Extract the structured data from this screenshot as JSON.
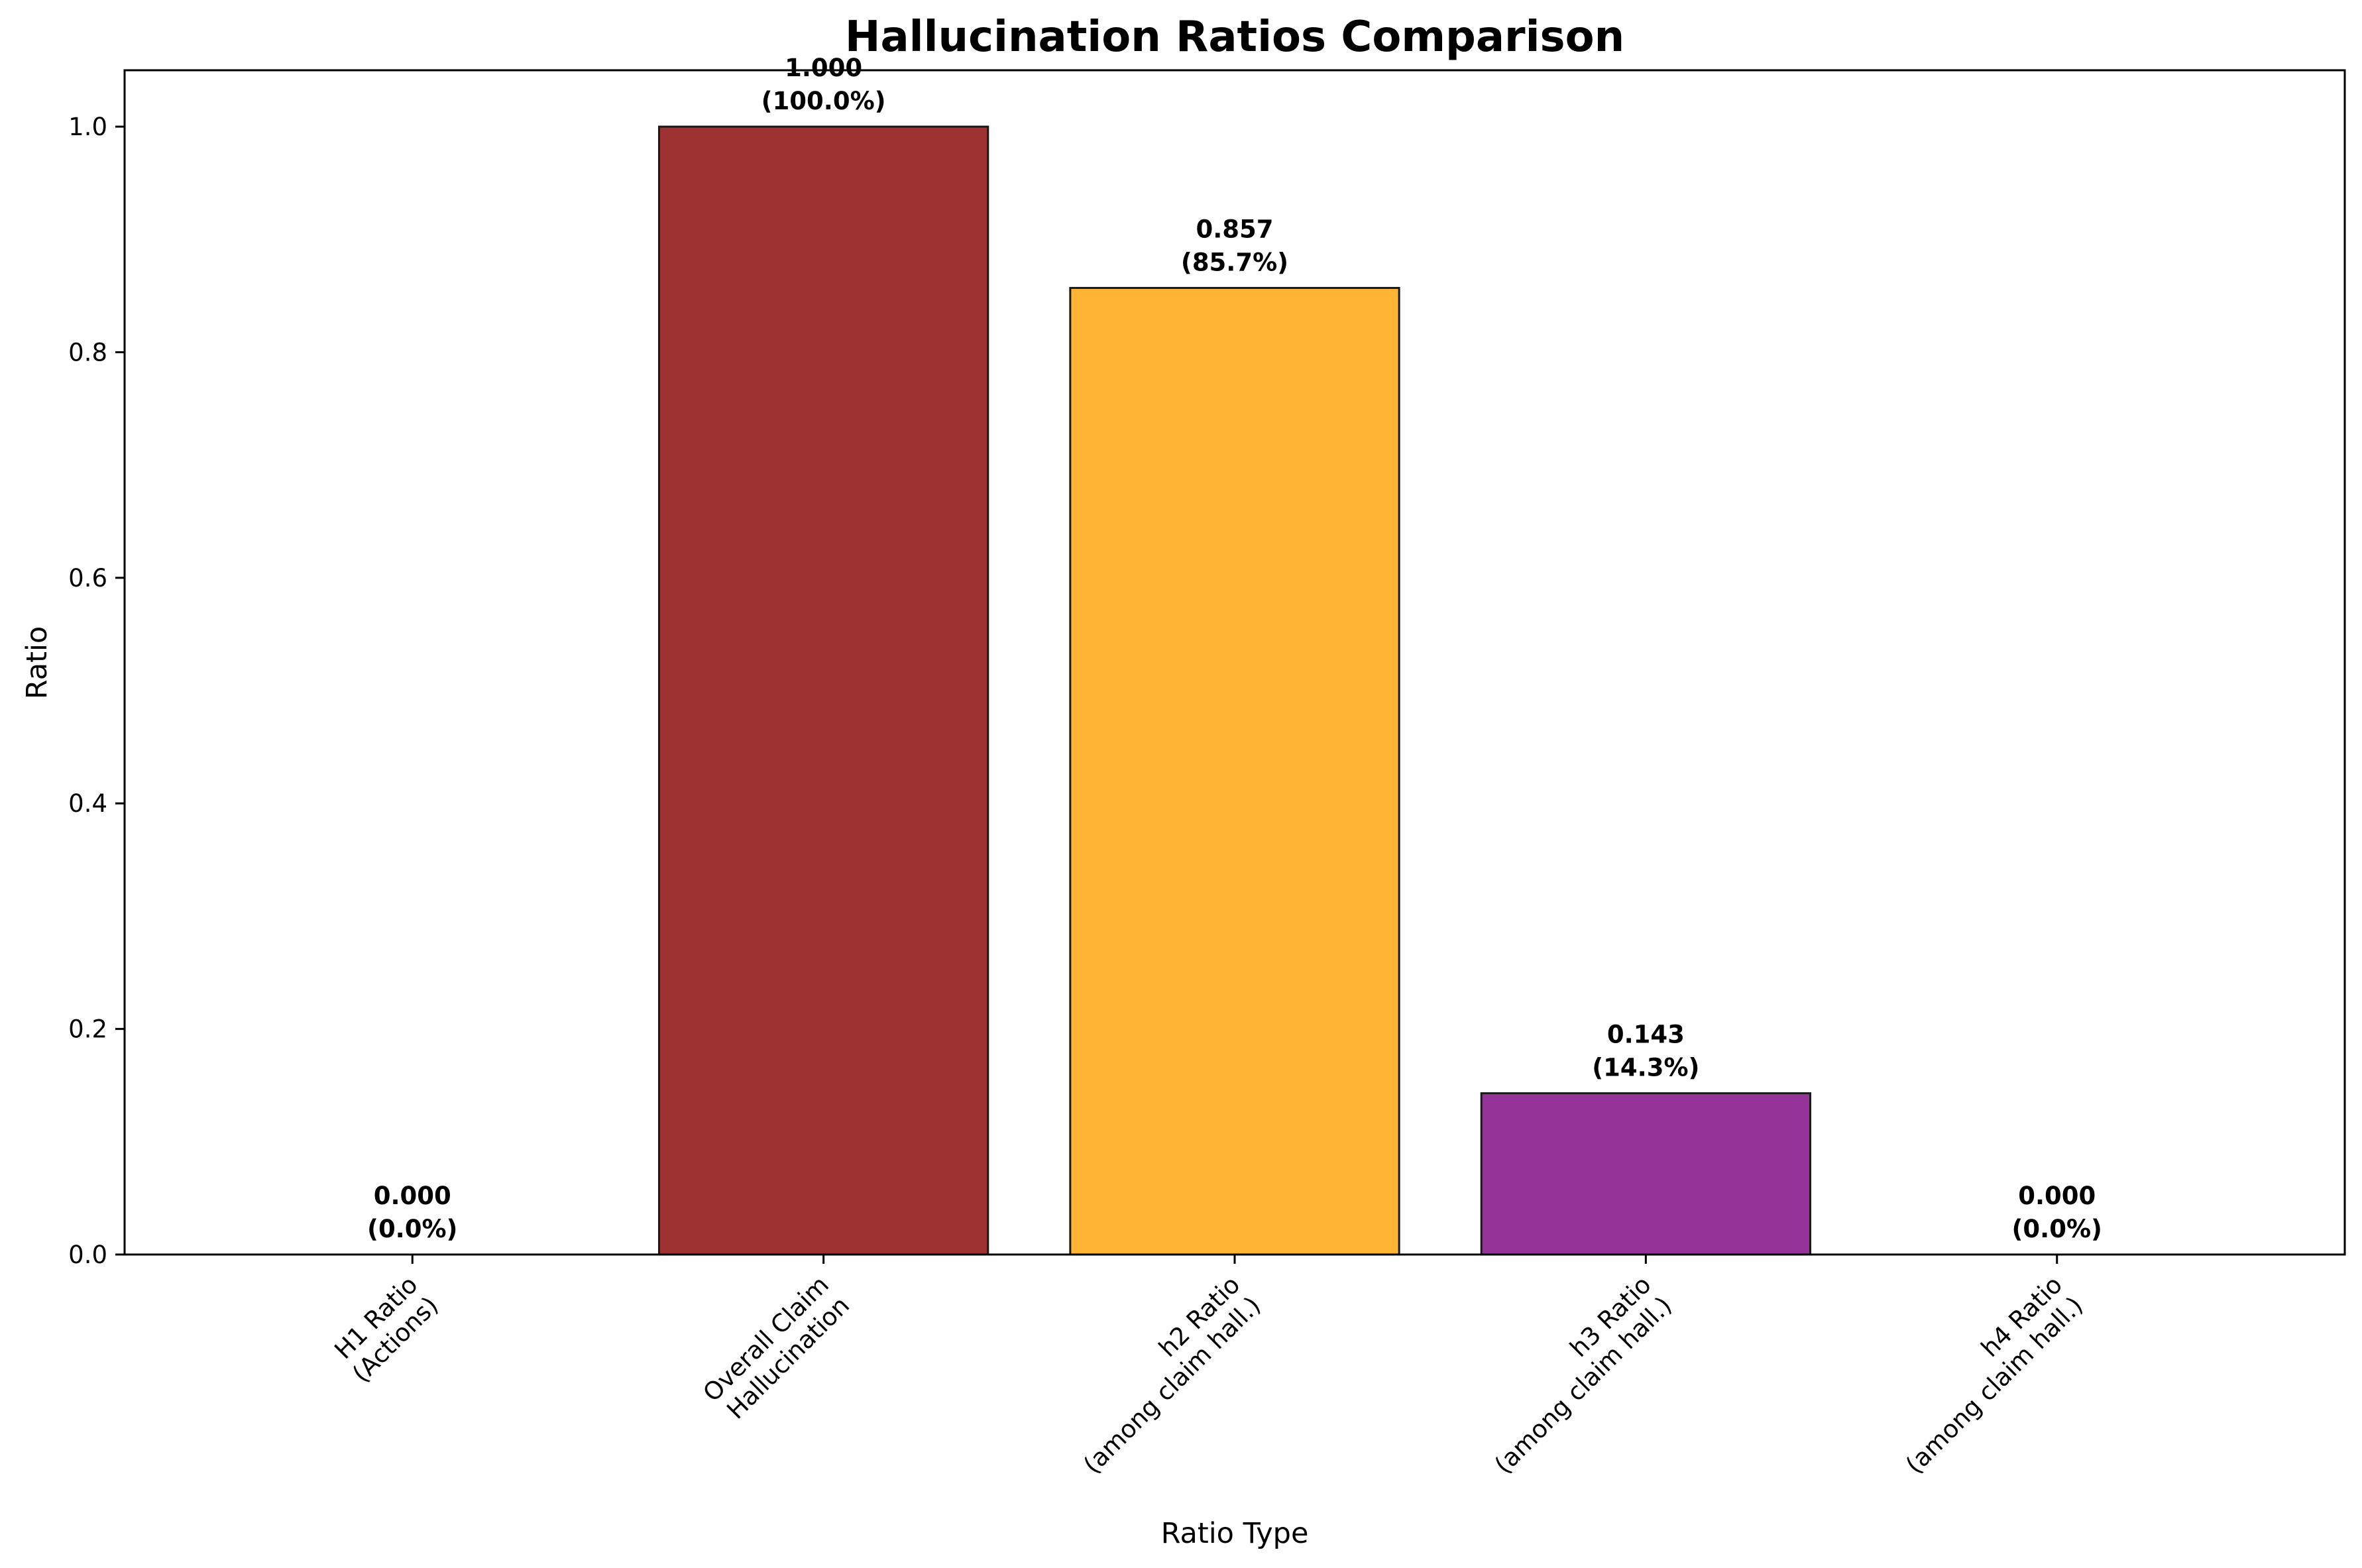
{
  "chart_data": {
    "type": "bar",
    "title": "Hallucination Ratios Comparison",
    "xlabel": "Ratio Type",
    "ylabel": "Ratio",
    "ylim": [
      0,
      1.05
    ],
    "yticks": [
      "0.0",
      "0.2",
      "0.4",
      "0.6",
      "0.8",
      "1.0"
    ],
    "grid": false,
    "categories": [
      [
        "H1 Ratio",
        "(Actions)"
      ],
      [
        "Overall Claim",
        "Hallucination"
      ],
      [
        "h2 Ratio",
        "(among claim hall.)"
      ],
      [
        "h3 Ratio",
        "(among claim hall.)"
      ],
      [
        "h4 Ratio",
        "(among claim hall.)"
      ]
    ],
    "values": [
      0.0,
      1.0,
      0.857,
      0.143,
      0.0
    ],
    "value_labels": [
      "0.000",
      "1.000",
      "0.857",
      "0.143",
      "0.000"
    ],
    "percent_labels": [
      "(0.0%)",
      "(100.0%)",
      "(85.7%)",
      "(14.3%)",
      "(0.0%)"
    ],
    "colors": [
      "#1f1f1f",
      "#9e3232",
      "#ffb533",
      "#963399",
      "#1f1f1f"
    ],
    "edge_color": "#1a1a1a"
  }
}
